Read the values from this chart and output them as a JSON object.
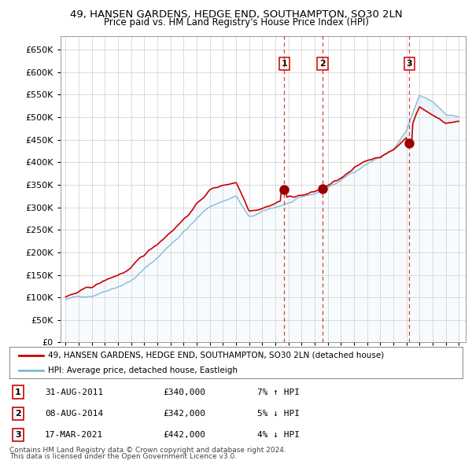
{
  "title_line1": "49, HANSEN GARDENS, HEDGE END, SOUTHAMPTON, SO30 2LN",
  "title_line2": "Price paid vs. HM Land Registry's House Price Index (HPI)",
  "ylim": [
    0,
    680000
  ],
  "yticks": [
    0,
    50000,
    100000,
    150000,
    200000,
    250000,
    300000,
    350000,
    400000,
    450000,
    500000,
    550000,
    600000,
    650000
  ],
  "x_start_year": 1995,
  "x_end_year": 2025,
  "transactions": [
    {
      "label": "1",
      "date": "31-AUG-2011",
      "price": 340000,
      "rel": "7% ↑ HPI",
      "year": 2011.67
    },
    {
      "label": "2",
      "date": "08-AUG-2014",
      "price": 342000,
      "rel": "5% ↓ HPI",
      "year": 2014.6
    },
    {
      "label": "3",
      "date": "17-MAR-2021",
      "price": 442000,
      "rel": "4% ↓ HPI",
      "year": 2021.21
    }
  ],
  "legend_line1": "49, HANSEN GARDENS, HEDGE END, SOUTHAMPTON, SO30 2LN (detached house)",
  "legend_line2": "HPI: Average price, detached house, Eastleigh",
  "footer_line1": "Contains HM Land Registry data © Crown copyright and database right 2024.",
  "footer_line2": "This data is licensed under the Open Government Licence v3.0.",
  "hpi_color": "#7eb8d4",
  "hpi_fill_color": "#c8dff0",
  "price_color": "#cc0000",
  "vline_color": "#cc0000",
  "marker_color": "#990000",
  "bg_color": "#ffffff",
  "plot_bg_color": "#ffffff"
}
